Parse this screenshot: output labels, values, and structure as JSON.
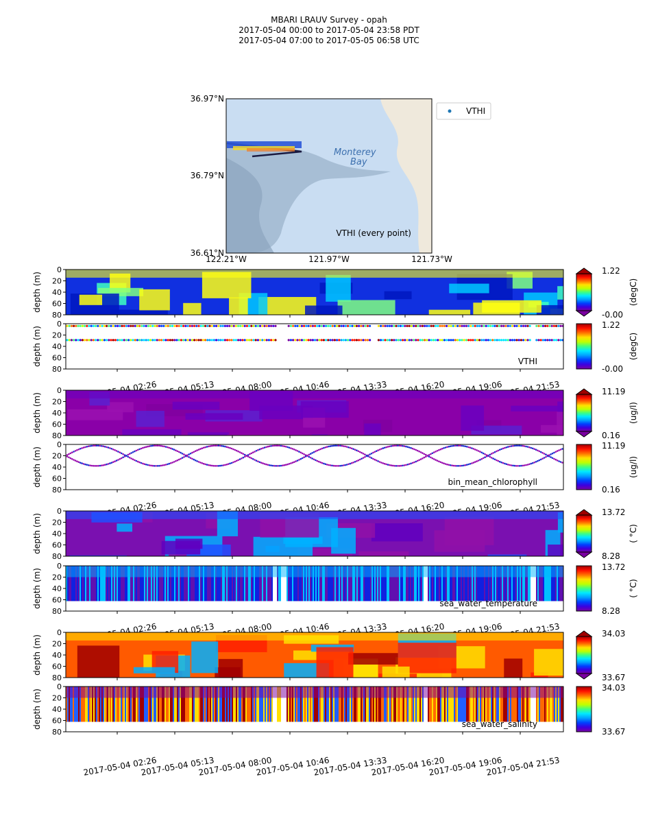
{
  "header": {
    "title_line1": "MBARI LRAUV Survey - opah",
    "title_line2": "2017-05-04 00:00  to  2017-05-04 23:58 PDT",
    "title_line3": "2017-05-04 07:00  to  2017-05-05 06:58 UTC"
  },
  "map": {
    "lat_labels": [
      "36.97°N",
      "36.79°N",
      "36.61°N"
    ],
    "lon_labels": [
      "122.21°W",
      "121.97°W",
      "121.73°W"
    ],
    "place_label_1": "Monterey",
    "place_label_2": "Bay",
    "legend_label": "VTHI",
    "caption": "VTHI (every point)",
    "colors": {
      "water": "#c9ddf2",
      "land": "#efe9dc",
      "canyon": "#8ba4bd",
      "legend_marker": "#1f77b4"
    }
  },
  "time_labels": [
    "2017-05-04 02:26",
    "2017-05-04 05:13",
    "2017-05-04 08:00",
    "2017-05-04 10:46",
    "2017-05-04 13:33",
    "2017-05-04 16:20",
    "2017-05-04 19:06",
    "2017-05-04 21:53"
  ],
  "depth_axis_label": "depth (m)",
  "depth_ticks": [
    "0",
    "20",
    "40",
    "60",
    "80"
  ],
  "chart_data": [
    {
      "type": "heatmap",
      "variable": "VTHI",
      "view": "interpolated",
      "units": "(degC)",
      "cmin": "-0.00",
      "cmax": "1.22",
      "ylim": [
        0,
        80
      ]
    },
    {
      "type": "scatter",
      "variable": "VTHI",
      "view": "samples",
      "label": "VTHI",
      "units": "(degC)",
      "cmin": "-0.00",
      "cmax": "1.22",
      "ylim": [
        0,
        80
      ]
    },
    {
      "type": "heatmap",
      "variable": "bin_mean_chlorophyll",
      "view": "interpolated",
      "units": "(ug/l)",
      "cmin": "0.16",
      "cmax": "11.19",
      "ylim": [
        0,
        80
      ]
    },
    {
      "type": "scatter",
      "variable": "bin_mean_chlorophyll",
      "view": "samples",
      "label": "bin_mean_chlorophyll",
      "units": "(ug/l)",
      "cmin": "0.16",
      "cmax": "11.19",
      "ylim": [
        0,
        80
      ]
    },
    {
      "type": "heatmap",
      "variable": "sea_water_temperature",
      "view": "interpolated",
      "units": "( °C)",
      "cmin": "8.28",
      "cmax": "13.72",
      "ylim": [
        0,
        80
      ]
    },
    {
      "type": "scatter",
      "variable": "sea_water_temperature",
      "view": "samples",
      "label": "sea_water_temperature",
      "units": "( °C)",
      "cmin": "8.28",
      "cmax": "13.72",
      "ylim": [
        0,
        80
      ]
    },
    {
      "type": "heatmap",
      "variable": "sea_water_salinity",
      "view": "interpolated",
      "units": "",
      "cmin": "33.67",
      "cmax": "34.03",
      "ylim": [
        0,
        80
      ]
    },
    {
      "type": "scatter",
      "variable": "sea_water_salinity",
      "view": "samples",
      "label": "sea_water_salinity",
      "units": "",
      "cmin": "33.67",
      "cmax": "34.03",
      "ylim": [
        0,
        80
      ]
    }
  ]
}
